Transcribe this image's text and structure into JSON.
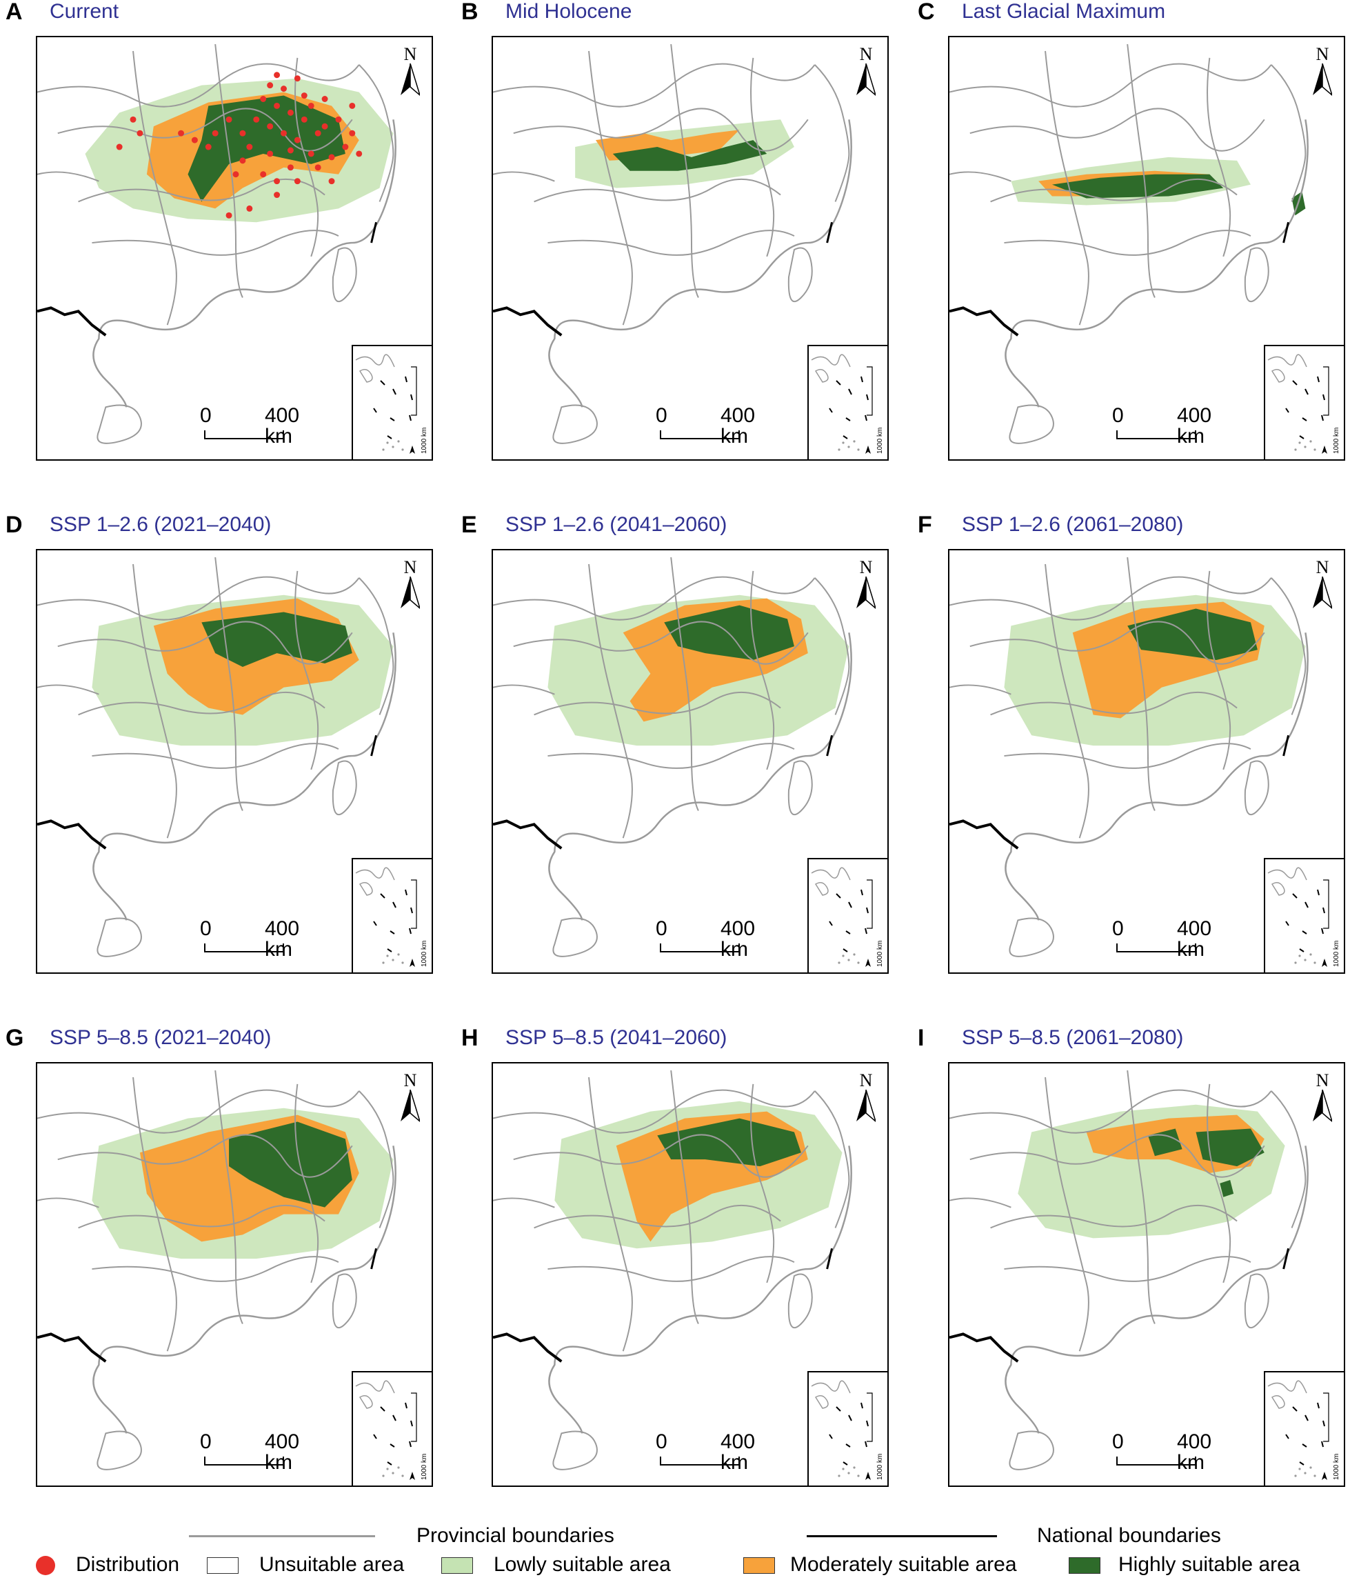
{
  "panels": [
    {
      "id": "A",
      "letter": "A",
      "title": "Current",
      "scenario": "current"
    },
    {
      "id": "B",
      "letter": "B",
      "title": "Mid Holocene",
      "scenario": "mid-holocene"
    },
    {
      "id": "C",
      "letter": "C",
      "title": "Last Glacial Maximum",
      "scenario": "lgm"
    },
    {
      "id": "D",
      "letter": "D",
      "title": "SSP 1–2.6 (2021–2040)",
      "scenario": "ssp126-2030"
    },
    {
      "id": "E",
      "letter": "E",
      "title": "SSP 1–2.6 (2041–2060)",
      "scenario": "ssp126-2050"
    },
    {
      "id": "F",
      "letter": "F",
      "title": "SSP 1–2.6 (2061–2080)",
      "scenario": "ssp126-2070"
    },
    {
      "id": "G",
      "letter": "G",
      "title": "SSP 5–8.5 (2021–2040)",
      "scenario": "ssp585-2030"
    },
    {
      "id": "H",
      "letter": "H",
      "title": "SSP 5–8.5 (2041–2060)",
      "scenario": "ssp585-2050"
    },
    {
      "id": "I",
      "letter": "I",
      "title": "SSP 5–8.5 (2061–2080)",
      "scenario": "ssp585-2070"
    }
  ],
  "map_labels": {
    "north": "N",
    "scale_zero": "0",
    "scale_max": "400 km",
    "inset_scale": "1000 km"
  },
  "legend": {
    "provincial_boundaries": "Provincial boundaries",
    "national_boundaries": "National boundaries",
    "distribution": "Distribution",
    "unsuitable": "Unsuitable area",
    "lowly": "Lowly suitable area",
    "moderately": "Moderately suitable area",
    "highly": "Highly suitable area"
  },
  "colors": {
    "title": "#2f3192",
    "unsuitable": "#ffffff",
    "lowly": "#c5e3b3",
    "moderately": "#f7a23b",
    "highly": "#2e6b2a",
    "distribution": "#e8302a",
    "provincial_line": "#9a9a9a",
    "national_line": "#000000"
  }
}
